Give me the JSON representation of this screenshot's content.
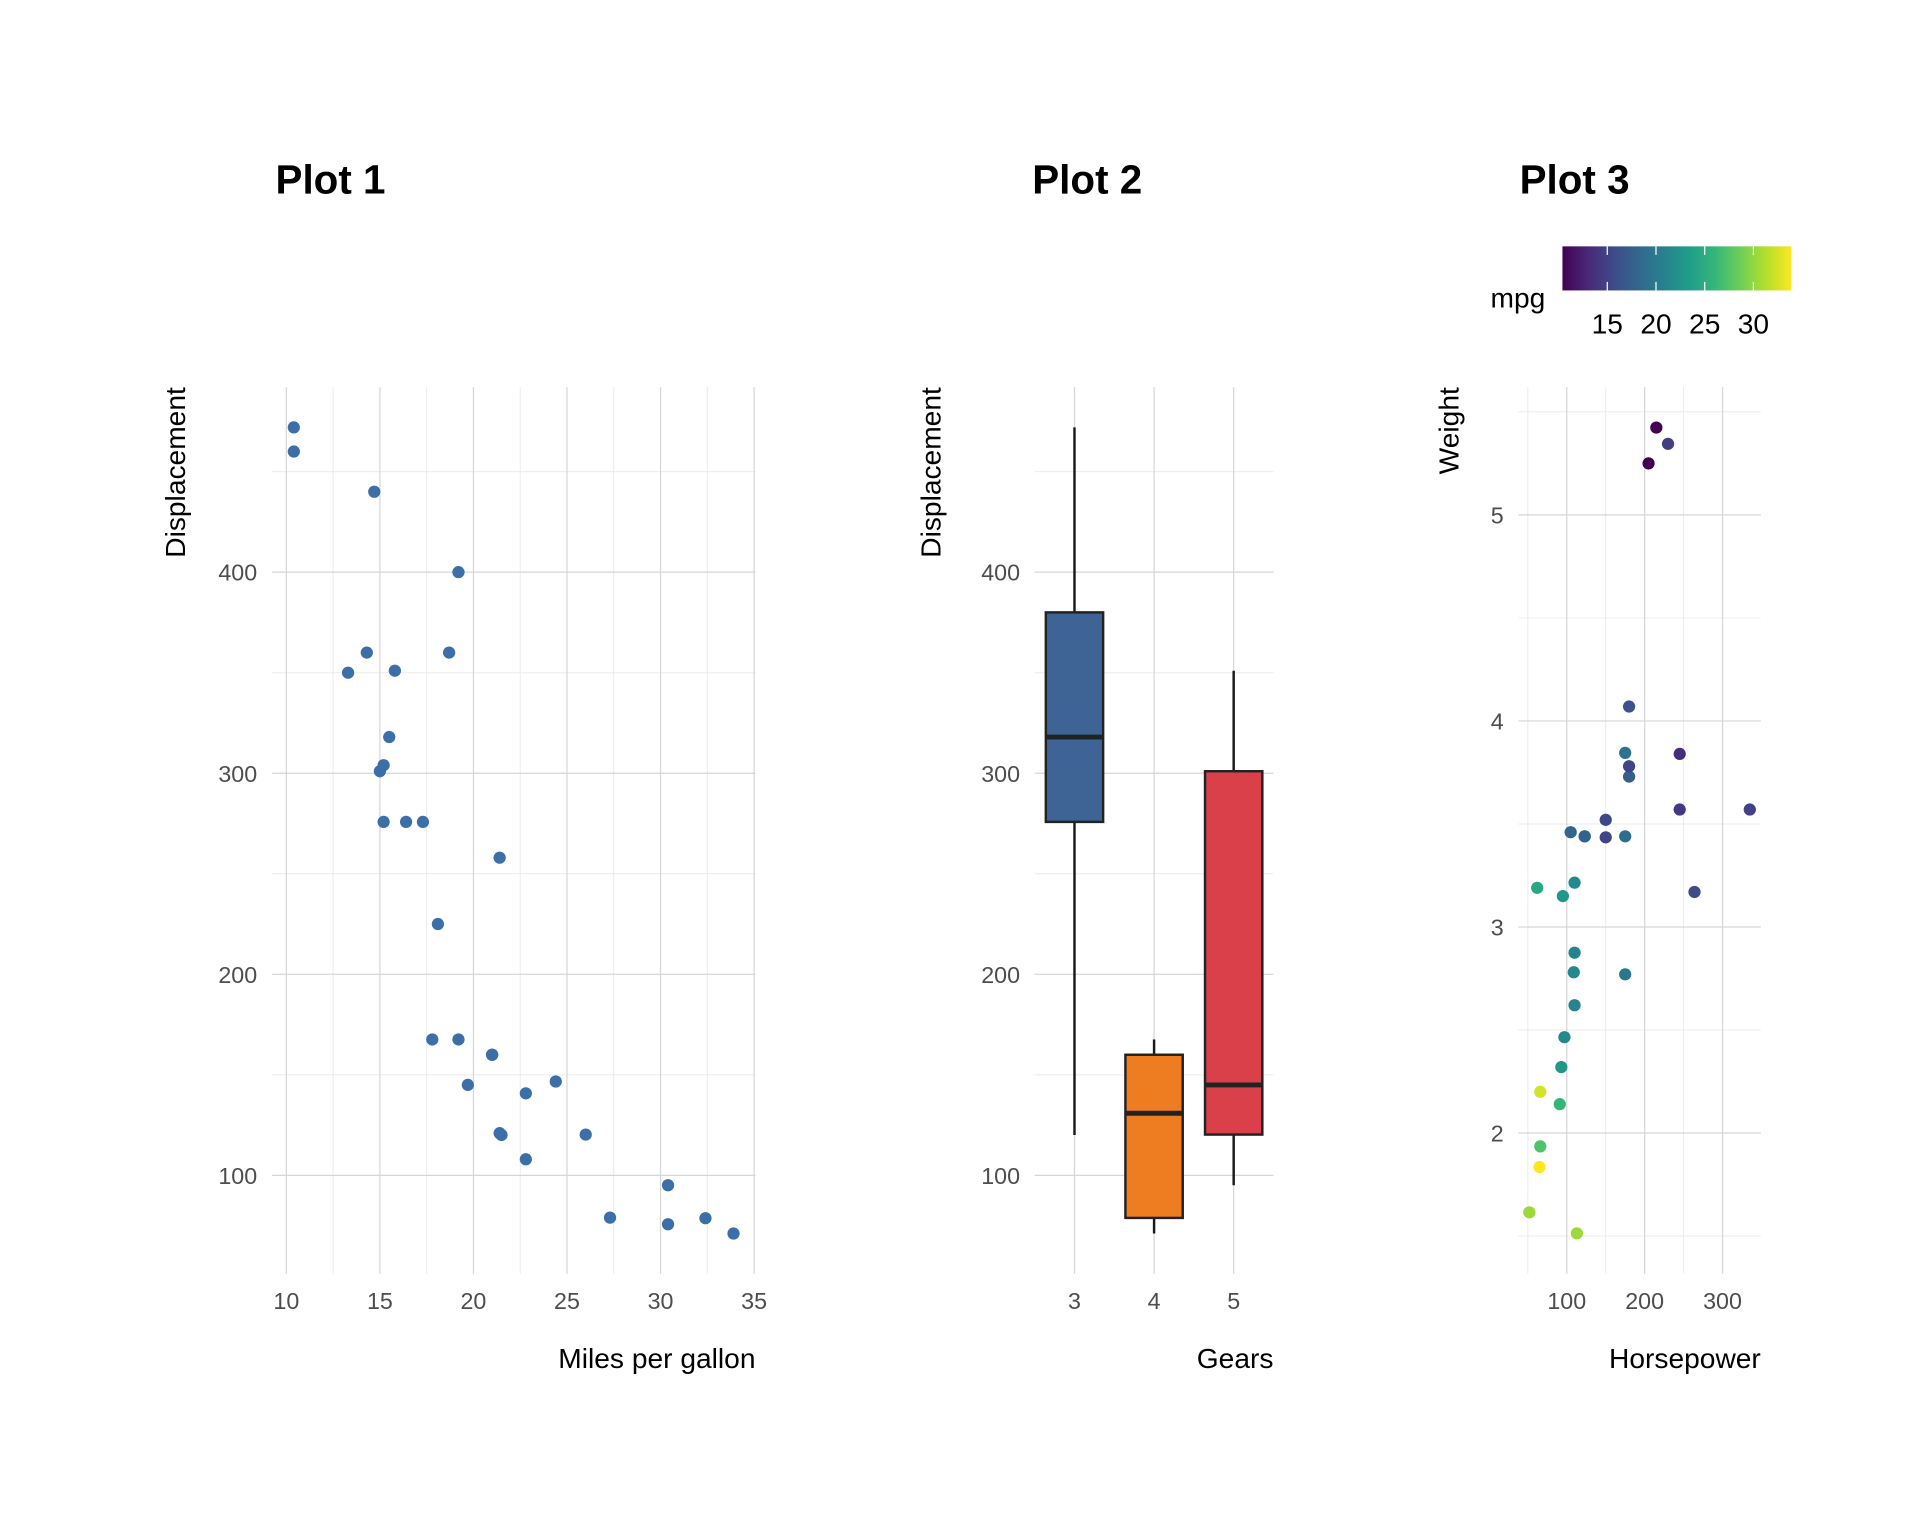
{
  "chart_data": [
    {
      "type": "scatter",
      "title": "Plot 1",
      "xlabel": "Miles per gallon",
      "ylabel": "Displacement",
      "color": "#3c6ea8",
      "x": [
        21,
        21,
        22.8,
        21.4,
        18.7,
        18.1,
        14.3,
        24.4,
        22.8,
        19.2,
        17.8,
        16.4,
        17.3,
        15.2,
        10.4,
        10.4,
        14.7,
        32.4,
        30.4,
        33.9,
        21.5,
        15.5,
        15.2,
        13.3,
        19.2,
        27.3,
        26,
        30.4,
        15.8,
        19.7,
        15,
        21.4
      ],
      "y": [
        160,
        160,
        108,
        258,
        360,
        225,
        360,
        146.7,
        140.8,
        167.6,
        167.6,
        275.8,
        275.8,
        275.8,
        472,
        460,
        440,
        78.7,
        75.7,
        71.1,
        120.1,
        318,
        304,
        350,
        400,
        79,
        120.3,
        95.1,
        351,
        145,
        301,
        121
      ],
      "xlim": [
        9.225,
        35.075
      ],
      "xticks": [
        10,
        15,
        20,
        25,
        30,
        35
      ],
      "x_minor_ticks": [
        12.5,
        17.5,
        22.5,
        27.5,
        32.5
      ],
      "ylim": [
        51.1,
        492
      ],
      "yticks": [
        100,
        200,
        300,
        400
      ],
      "y_minor_ticks": [
        150,
        250,
        350,
        450
      ],
      "grid": true
    },
    {
      "type": "box",
      "title": "Plot 2",
      "xlabel": "Gears",
      "ylabel": "Displacement",
      "categories": [
        "3",
        "4",
        "5"
      ],
      "colors": [
        "#3e6496",
        "#ee7d22",
        "#d9404a"
      ],
      "boxes": [
        {
          "low": 120.1,
          "q1": 275.8,
          "median": 318,
          "q3": 380,
          "high": 472
        },
        {
          "low": 71.1,
          "q1": 78.85,
          "median": 130.9,
          "q3": 160,
          "high": 167.6
        },
        {
          "low": 95.1,
          "q1": 120.3,
          "median": 145,
          "q3": 301,
          "high": 351
        }
      ],
      "ylim": [
        51.1,
        492
      ],
      "yticks": [
        100,
        200,
        300,
        400
      ],
      "y_minor_ticks": [
        150,
        250,
        350,
        450
      ],
      "grid": true
    },
    {
      "type": "scatter",
      "title": "Plot 3",
      "xlabel": "Horsepower",
      "ylabel": "Weight",
      "x": [
        110,
        110,
        93,
        110,
        175,
        105,
        245,
        62,
        95,
        123,
        123,
        180,
        180,
        180,
        205,
        215,
        230,
        66,
        52,
        65,
        97,
        150,
        150,
        245,
        175,
        66,
        91,
        113,
        264,
        175,
        335,
        109
      ],
      "y": [
        2.62,
        2.875,
        2.32,
        3.215,
        3.44,
        3.46,
        3.57,
        3.19,
        3.15,
        3.44,
        3.44,
        4.07,
        3.73,
        3.78,
        5.25,
        5.424,
        5.345,
        2.2,
        1.615,
        1.835,
        2.465,
        3.52,
        3.435,
        3.84,
        3.845,
        1.935,
        2.14,
        1.513,
        3.17,
        2.77,
        3.57,
        2.78
      ],
      "color_values": [
        21,
        21,
        22.8,
        21.4,
        18.7,
        18.1,
        14.3,
        24.4,
        22.8,
        19.2,
        17.8,
        16.4,
        17.3,
        15.2,
        10.4,
        10.4,
        14.7,
        32.4,
        30.4,
        33.9,
        21.5,
        15.5,
        15.2,
        13.3,
        19.2,
        27.3,
        26,
        30.4,
        15.8,
        19.7,
        15,
        21.4
      ],
      "colorbar": {
        "title": "mpg",
        "lim": [
          10.4,
          33.9
        ],
        "ticks": [
          15,
          20,
          25,
          30
        ],
        "colors": [
          "#440154",
          "#482878",
          "#3e4a89",
          "#31688e",
          "#26828e",
          "#1f9e89",
          "#35b779",
          "#6ece58",
          "#b5de2b",
          "#fde725"
        ]
      },
      "xlim": [
        37.85,
        349.15
      ],
      "xticks": [
        100,
        200,
        300
      ],
      "x_minor_ticks": [
        50,
        150,
        250
      ],
      "ylim": [
        1.317,
        5.62
      ],
      "yticks": [
        2,
        3,
        4,
        5
      ],
      "y_minor_ticks": [
        1.5,
        2.5,
        3.5,
        4.5,
        5.5
      ],
      "grid": true
    }
  ]
}
